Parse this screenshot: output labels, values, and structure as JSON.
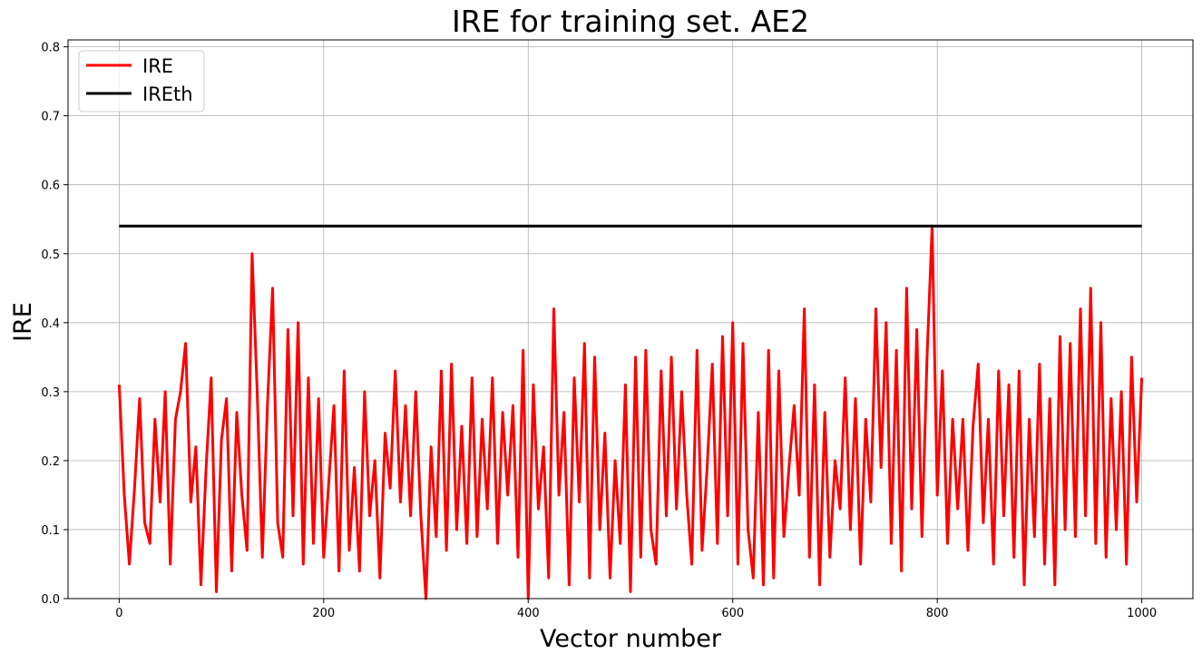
{
  "chart_data": {
    "type": "line",
    "title": "IRE for training set. AE2",
    "xlabel": "Vector number",
    "ylabel": "IRE",
    "xlim": [
      -50,
      1050
    ],
    "ylim": [
      0,
      0.81
    ],
    "xticks": [
      "0",
      "200",
      "400",
      "600",
      "800",
      "1000"
    ],
    "yticks": [
      "0.0",
      "0.1",
      "0.2",
      "0.3",
      "0.4",
      "0.5",
      "0.6",
      "0.7",
      "0.8"
    ],
    "grid": true,
    "legend_position": "top-left",
    "series": [
      {
        "name": "IRE",
        "color": "#ff0000",
        "x_start": 0,
        "x_step": 5,
        "values": [
          0.31,
          0.15,
          0.05,
          0.16,
          0.29,
          0.11,
          0.08,
          0.26,
          0.14,
          0.3,
          0.05,
          0.26,
          0.3,
          0.37,
          0.14,
          0.22,
          0.02,
          0.19,
          0.32,
          0.01,
          0.23,
          0.29,
          0.04,
          0.27,
          0.15,
          0.07,
          0.5,
          0.3,
          0.06,
          0.28,
          0.45,
          0.11,
          0.06,
          0.39,
          0.12,
          0.4,
          0.05,
          0.32,
          0.08,
          0.29,
          0.06,
          0.17,
          0.28,
          0.04,
          0.33,
          0.07,
          0.19,
          0.04,
          0.3,
          0.12,
          0.2,
          0.03,
          0.24,
          0.16,
          0.33,
          0.14,
          0.28,
          0.12,
          0.3,
          0.12,
          0.0,
          0.22,
          0.09,
          0.33,
          0.07,
          0.34,
          0.1,
          0.25,
          0.08,
          0.32,
          0.09,
          0.26,
          0.13,
          0.32,
          0.08,
          0.27,
          0.15,
          0.28,
          0.06,
          0.36,
          0.0,
          0.31,
          0.13,
          0.22,
          0.03,
          0.42,
          0.15,
          0.27,
          0.02,
          0.32,
          0.14,
          0.37,
          0.03,
          0.35,
          0.1,
          0.24,
          0.03,
          0.2,
          0.08,
          0.31,
          0.01,
          0.35,
          0.06,
          0.36,
          0.1,
          0.05,
          0.33,
          0.12,
          0.35,
          0.13,
          0.3,
          0.15,
          0.05,
          0.36,
          0.07,
          0.19,
          0.34,
          0.08,
          0.38,
          0.12,
          0.4,
          0.05,
          0.37,
          0.1,
          0.03,
          0.27,
          0.02,
          0.36,
          0.03,
          0.33,
          0.09,
          0.19,
          0.28,
          0.15,
          0.42,
          0.06,
          0.31,
          0.02,
          0.27,
          0.06,
          0.2,
          0.13,
          0.32,
          0.1,
          0.29,
          0.05,
          0.26,
          0.14,
          0.42,
          0.19,
          0.4,
          0.08,
          0.36,
          0.04,
          0.45,
          0.13,
          0.39,
          0.09,
          0.35,
          0.54,
          0.15,
          0.33,
          0.08,
          0.26,
          0.13,
          0.26,
          0.07,
          0.25,
          0.34,
          0.11,
          0.26,
          0.05,
          0.33,
          0.12,
          0.31,
          0.06,
          0.33,
          0.02,
          0.26,
          0.09,
          0.34,
          0.05,
          0.29,
          0.02,
          0.38,
          0.1,
          0.37,
          0.09,
          0.42,
          0.12,
          0.45,
          0.08,
          0.4,
          0.06,
          0.29,
          0.1,
          0.3,
          0.05,
          0.35,
          0.14,
          0.32
        ]
      },
      {
        "name": "IREth",
        "color": "#000000",
        "x": [
          0,
          1000
        ],
        "values": [
          0.54,
          0.54
        ]
      }
    ]
  }
}
